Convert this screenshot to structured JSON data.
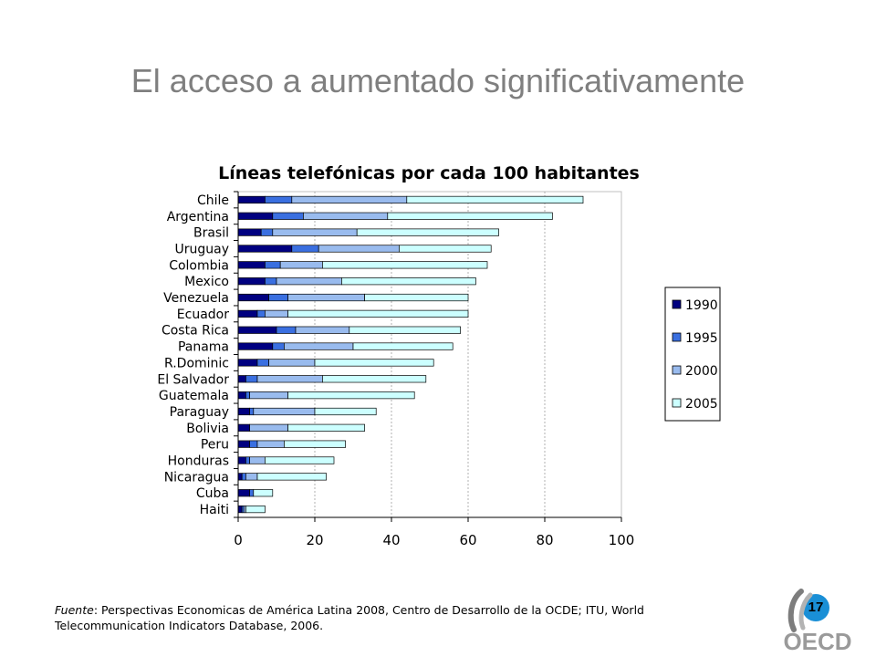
{
  "slide": {
    "title": "El acceso a aumentado significativamente",
    "page_number": "17",
    "footnote_source_label": "Fuente",
    "footnote_text": ": Perspectivas Economicas de América Latina 2008, Centro de Desarrollo de la OCDE; ITU, World Telecommunication Indicators Database, 2006.",
    "logo_text": "OECD"
  },
  "chart_data": {
    "type": "bar",
    "orientation": "horizontal",
    "stacked": true,
    "title": "Líneas telefónicas por cada 100 habitantes",
    "xlabel": "",
    "ylabel": "",
    "xlim": [
      0,
      100
    ],
    "xticks": [
      0,
      20,
      40,
      60,
      80,
      100
    ],
    "grid": true,
    "legend_position": "right",
    "categories": [
      "Chile",
      "Argentina",
      "Brasil",
      "Uruguay",
      "Colombia",
      "Mexico",
      "Venezuela",
      "Ecuador",
      "Costa Rica",
      "Panama",
      "R.Dominic",
      "El Salvador",
      "Guatemala",
      "Paraguay",
      "Bolivia",
      "Peru",
      "Honduras",
      "Nicaragua",
      "Cuba",
      "Haiti"
    ],
    "series": [
      {
        "name": "1990",
        "color": "#000080",
        "values": [
          7,
          9,
          6,
          14,
          7,
          7,
          8,
          5,
          10,
          9,
          5,
          2,
          2,
          3,
          3,
          3,
          2,
          1,
          3,
          1
        ]
      },
      {
        "name": "1995",
        "color": "#3a6fe0",
        "values": [
          7,
          8,
          3,
          7,
          4,
          3,
          5,
          2,
          5,
          3,
          3,
          3,
          1,
          1,
          0,
          2,
          1,
          1,
          1,
          0.5
        ]
      },
      {
        "name": "2000",
        "color": "#99bbee",
        "values": [
          30,
          22,
          22,
          21,
          11,
          17,
          20,
          6,
          14,
          18,
          12,
          17,
          10,
          16,
          10,
          7,
          4,
          3,
          0,
          0.5
        ]
      },
      {
        "name": "2005",
        "color": "#ccffff",
        "values": [
          46,
          43,
          37,
          24,
          43,
          35,
          27,
          47,
          29,
          26,
          31,
          27,
          33,
          16,
          20,
          16,
          18,
          18,
          5,
          5
        ]
      }
    ]
  }
}
